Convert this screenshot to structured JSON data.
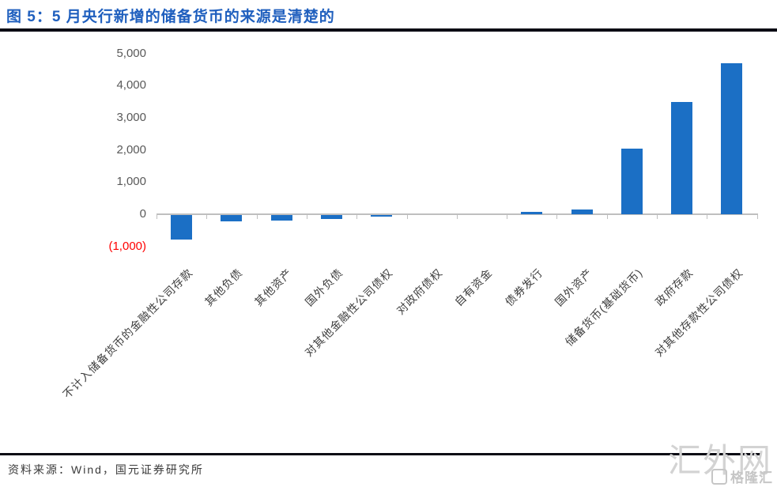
{
  "header": {
    "title": "图 5：5 月央行新增的储备货币的来源是清楚的"
  },
  "chart_data": {
    "type": "bar",
    "title": "图 5：5 月央行新增的储备货币的来源是清楚的",
    "categories": [
      "不计入储备货币的金融性公司存款",
      "其他负债",
      "其他资产",
      "国外负债",
      "对其他金融性公司债权",
      "对政府债权",
      "自有资金",
      "债券发行",
      "国外资产",
      "储备货币(基础货币)",
      "政府存款",
      "对其他存款性公司债权"
    ],
    "values": [
      -750,
      -200,
      -180,
      -120,
      -60,
      0,
      0,
      80,
      150,
      2050,
      3500,
      4700
    ],
    "xlabel": "",
    "ylabel": "",
    "ylim": [
      -1000,
      5000
    ],
    "yticks": [
      {
        "label": "5,000",
        "value": 5000
      },
      {
        "label": "4,000",
        "value": 4000
      },
      {
        "label": "3,000",
        "value": 3000
      },
      {
        "label": "2,000",
        "value": 2000
      },
      {
        "label": "1,000",
        "value": 1000
      },
      {
        "label": "0",
        "value": 0
      },
      {
        "label": "(1,000)",
        "value": -1000
      }
    ],
    "grid": "off",
    "legend": "none",
    "bar_color": "#1B6FC5",
    "negative_tick_color": "#FF0000",
    "axis_color": "#BFBFBF"
  },
  "footer": {
    "source": "资料来源：Wind，国元证券研究所"
  },
  "watermark": {
    "large": "汇外网",
    "small": "格隆汇"
  },
  "colors": {
    "title_blue": "#1F5FBE",
    "rule_dark": "#0b0b14",
    "ytick_gray": "#595959"
  }
}
